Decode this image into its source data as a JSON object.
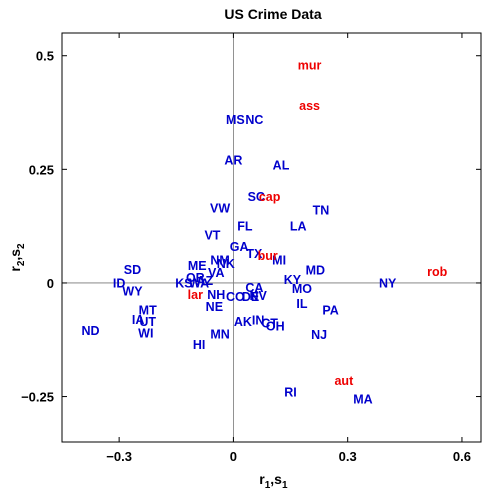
{
  "chart_data": {
    "type": "scatter",
    "title": "US Crime Data",
    "xlabel": {
      "base": "r",
      "sub1": "1",
      "sep": ",",
      "base2": "s",
      "sub2": "1"
    },
    "ylabel": {
      "base": "r",
      "sub1": "2",
      "sep": ",",
      "base2": "s",
      "sub2": "2"
    },
    "xlim": [
      -0.45,
      0.65
    ],
    "ylim": [
      -0.35,
      0.55
    ],
    "xticks": [
      {
        "v": -0.3,
        "label": "−0.3"
      },
      {
        "v": 0,
        "label": "0"
      },
      {
        "v": 0.3,
        "label": "0.3"
      },
      {
        "v": 0.6,
        "label": "0.6"
      }
    ],
    "yticks": [
      {
        "v": -0.25,
        "label": "−0.25"
      },
      {
        "v": 0,
        "label": "0"
      },
      {
        "v": 0.25,
        "label": "0.25"
      },
      {
        "v": 0.5,
        "label": "0.5"
      }
    ],
    "grid": false,
    "zero_lines": true,
    "colors": {
      "states": "#0000cc",
      "variables": "#ee0000"
    },
    "states": [
      {
        "label": "MS",
        "x": 0.005,
        "y": 0.36
      },
      {
        "label": "NC",
        "x": 0.055,
        "y": 0.36
      },
      {
        "label": "AR",
        "x": 0.0,
        "y": 0.27
      },
      {
        "label": "AL",
        "x": 0.125,
        "y": 0.26
      },
      {
        "label": "SC",
        "x": 0.06,
        "y": 0.19
      },
      {
        "label": "TN",
        "x": 0.23,
        "y": 0.16
      },
      {
        "label": "VW",
        "x": -0.035,
        "y": 0.165
      },
      {
        "label": "FL",
        "x": 0.03,
        "y": 0.125
      },
      {
        "label": "LA",
        "x": 0.17,
        "y": 0.125
      },
      {
        "label": "VT",
        "x": -0.055,
        "y": 0.105
      },
      {
        "label": "GA",
        "x": 0.015,
        "y": 0.08
      },
      {
        "label": "TX",
        "x": 0.055,
        "y": 0.065
      },
      {
        "label": "NM",
        "x": -0.035,
        "y": 0.05
      },
      {
        "label": "MI",
        "x": 0.12,
        "y": 0.05
      },
      {
        "label": "SD",
        "x": -0.265,
        "y": 0.03
      },
      {
        "label": "ME",
        "x": -0.095,
        "y": 0.038
      },
      {
        "label": "NK",
        "x": -0.02,
        "y": 0.043
      },
      {
        "label": "MD",
        "x": 0.215,
        "y": 0.028
      },
      {
        "label": "OR",
        "x": -0.1,
        "y": 0.012
      },
      {
        "label": "VA",
        "x": -0.045,
        "y": 0.023
      },
      {
        "label": "AZ",
        "x": -0.075,
        "y": 0.005
      },
      {
        "label": "KY",
        "x": 0.155,
        "y": 0.008
      },
      {
        "label": "ID",
        "x": -0.3,
        "y": 0.0
      },
      {
        "label": "KS",
        "x": -0.13,
        "y": 0.0
      },
      {
        "label": "WA",
        "x": -0.09,
        "y": 0.0
      },
      {
        "label": "NY",
        "x": 0.405,
        "y": 0.0
      },
      {
        "label": "CA",
        "x": 0.055,
        "y": -0.01
      },
      {
        "label": "MO",
        "x": 0.18,
        "y": -0.012
      },
      {
        "label": "WY",
        "x": -0.265,
        "y": -0.018
      },
      {
        "label": "NH",
        "x": -0.045,
        "y": -0.025
      },
      {
        "label": "CO",
        "x": 0.005,
        "y": -0.03
      },
      {
        "label": "DE",
        "x": 0.045,
        "y": -0.03
      },
      {
        "label": "NV",
        "x": 0.065,
        "y": -0.028
      },
      {
        "label": "IL",
        "x": 0.18,
        "y": -0.045
      },
      {
        "label": "NE",
        "x": -0.05,
        "y": -0.052
      },
      {
        "label": "PA",
        "x": 0.255,
        "y": -0.06
      },
      {
        "label": "MT",
        "x": -0.225,
        "y": -0.06
      },
      {
        "label": "IA",
        "x": -0.25,
        "y": -0.08
      },
      {
        "label": "UT",
        "x": -0.225,
        "y": -0.085
      },
      {
        "label": "AK",
        "x": 0.025,
        "y": -0.085
      },
      {
        "label": "WI",
        "x": -0.23,
        "y": -0.11
      },
      {
        "label": "IN",
        "x": 0.065,
        "y": -0.082
      },
      {
        "label": "CT",
        "x": 0.095,
        "y": -0.088
      },
      {
        "label": "OH",
        "x": 0.11,
        "y": -0.095
      },
      {
        "label": "ND",
        "x": -0.375,
        "y": -0.105
      },
      {
        "label": "MN",
        "x": -0.035,
        "y": -0.112
      },
      {
        "label": "NJ",
        "x": 0.225,
        "y": -0.113
      },
      {
        "label": "HI",
        "x": -0.09,
        "y": -0.135
      },
      {
        "label": "RI",
        "x": 0.15,
        "y": -0.24
      },
      {
        "label": "MA",
        "x": 0.34,
        "y": -0.255
      }
    ],
    "variables": [
      {
        "label": "mur",
        "x": 0.2,
        "y": 0.48
      },
      {
        "label": "ass",
        "x": 0.2,
        "y": 0.39
      },
      {
        "label": "cap",
        "x": 0.095,
        "y": 0.19
      },
      {
        "label": "bur",
        "x": 0.09,
        "y": 0.06
      },
      {
        "label": "rob",
        "x": 0.535,
        "y": 0.025
      },
      {
        "label": "lar",
        "x": -0.1,
        "y": -0.025
      },
      {
        "label": "aut",
        "x": 0.29,
        "y": -0.215
      }
    ]
  }
}
